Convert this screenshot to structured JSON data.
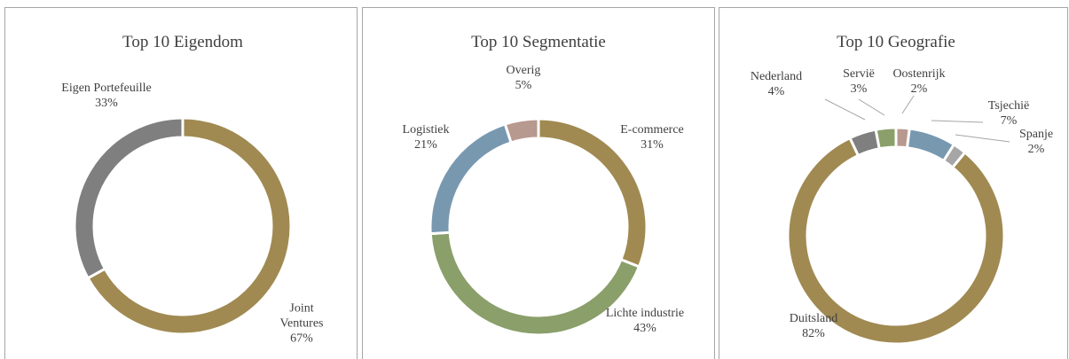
{
  "chart_data": [
    {
      "type": "pie",
      "title": "Top 10 Eigendom",
      "categories": [
        "Joint Ventures",
        "Eigen Portefeuille"
      ],
      "values": [
        67,
        33
      ],
      "value_labels": [
        "67%",
        "33%"
      ],
      "colors": [
        "#a08a52",
        "#7f7f7f"
      ]
    },
    {
      "type": "pie",
      "title": "Top 10 Segmentatie",
      "categories": [
        "E-commerce",
        "Lichte industrie",
        "Logistiek",
        "Overig"
      ],
      "values": [
        31,
        43,
        21,
        5
      ],
      "value_labels": [
        "31%",
        "43%",
        "21%",
        "5%"
      ],
      "colors": [
        "#a08a52",
        "#8a9f6a",
        "#7898b0",
        "#b8998f"
      ]
    },
    {
      "type": "pie",
      "title": "Top 10 Geografie",
      "categories": [
        "Oostenrijk",
        "Tsjechië",
        "Spanje",
        "Duitsland",
        "Nederland",
        "Servië"
      ],
      "values": [
        2,
        7,
        2,
        82,
        4,
        3
      ],
      "value_labels": [
        "2%",
        "7%",
        "2%",
        "82%",
        "4%",
        "3%"
      ],
      "colors": [
        "#b8998f",
        "#7898b0",
        "#a6a6a6",
        "#a08a52",
        "#7f7f7f",
        "#8a9f6a"
      ]
    }
  ]
}
